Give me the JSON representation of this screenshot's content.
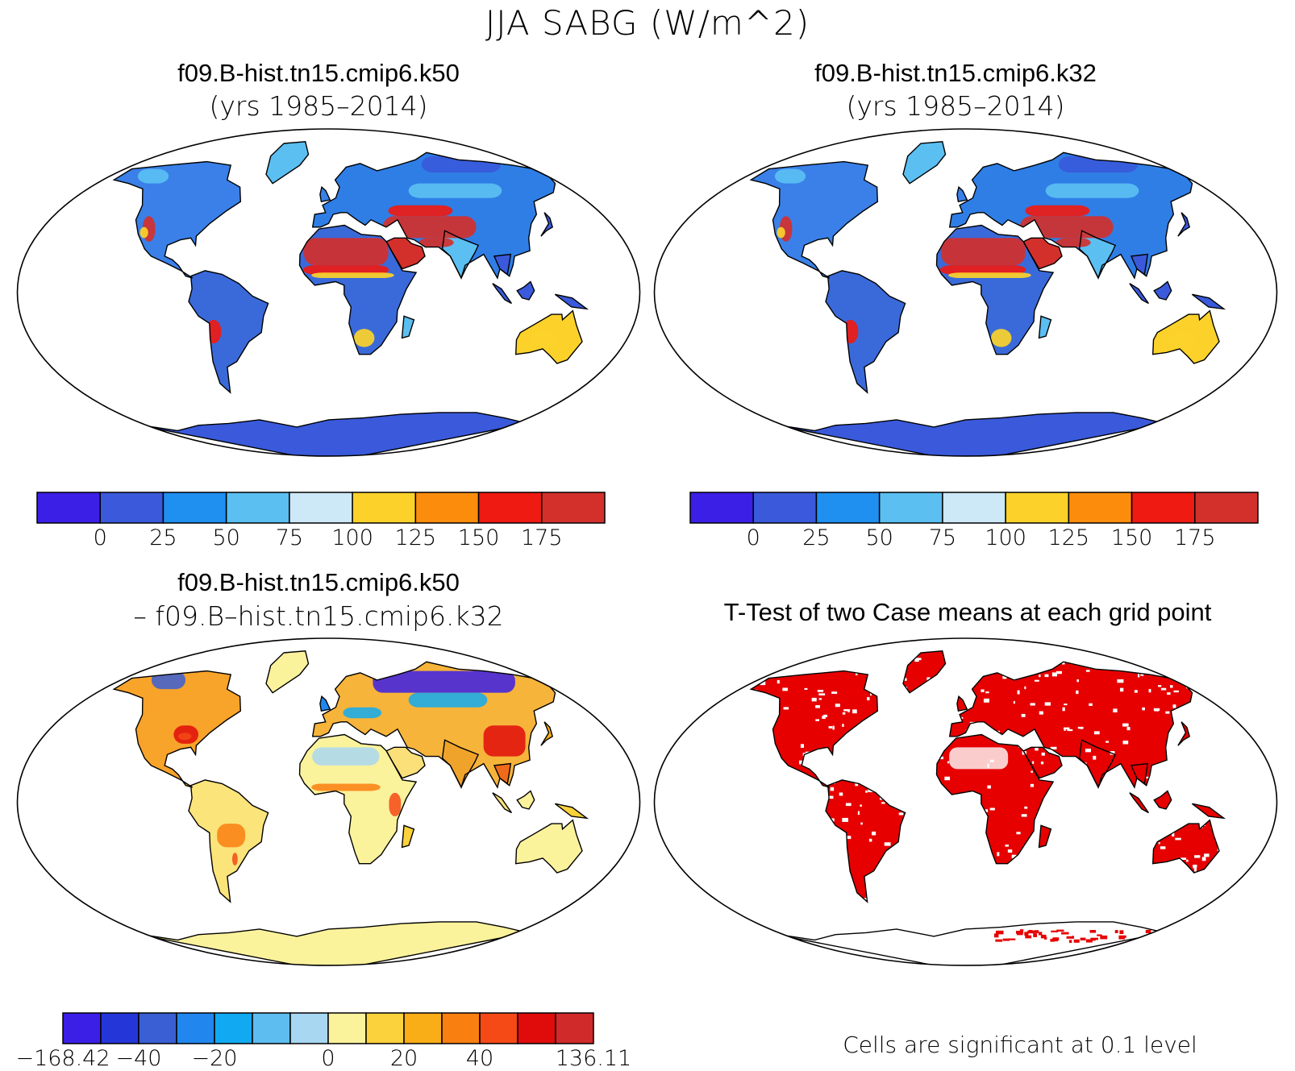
{
  "main_title": "JJA SABG (W/m^2)",
  "panels": [
    {
      "id": "k50",
      "title": "f09.B-hist.tn15.cmip6.k50",
      "subtitle": "(yrs 1985–2014)",
      "colorbar": {
        "colors": [
          "#3b1fe6",
          "#3a5adb",
          "#1f8ff0",
          "#5bbff2",
          "#cde8f7",
          "#fcd22a",
          "#fb8c0c",
          "#ef1a12",
          "#d3302c"
        ],
        "labels": [
          "0",
          "25",
          "50",
          "75",
          "100",
          "125",
          "150",
          "175"
        ]
      }
    },
    {
      "id": "k32",
      "title": "f09.B-hist.tn15.cmip6.k32",
      "subtitle": "(yrs 1985–2014)",
      "colorbar": {
        "colors": [
          "#3b1fe6",
          "#3a5adb",
          "#1f8ff0",
          "#5bbff2",
          "#cde8f7",
          "#fcd22a",
          "#fb8c0c",
          "#ef1a12",
          "#d3302c"
        ],
        "labels": [
          "0",
          "25",
          "50",
          "75",
          "100",
          "125",
          "150",
          "175"
        ]
      }
    },
    {
      "id": "diff",
      "title": "f09.B-hist.tn15.cmip6.k50",
      "subtitle": "– f09.B–hist.tn15.cmip6.k32",
      "colorbar": {
        "colors": [
          "#3b1fe6",
          "#2536d9",
          "#3a5fd4",
          "#2187ee",
          "#11aaf2",
          "#5ebdf0",
          "#a8d7f2",
          "#fbf29c",
          "#fbd23b",
          "#f9ad17",
          "#f97f10",
          "#f54916",
          "#e00c0c",
          "#d12a2a"
        ],
        "labels": [
          "−168.42",
          "−40",
          "−20",
          "0",
          "20",
          "40",
          "136.11"
        ]
      }
    },
    {
      "id": "ttest",
      "title": "T-Test of two Case means at each grid point",
      "note": "Cells are significant at 0.1 level",
      "fill_color": "#e60000"
    }
  ]
}
